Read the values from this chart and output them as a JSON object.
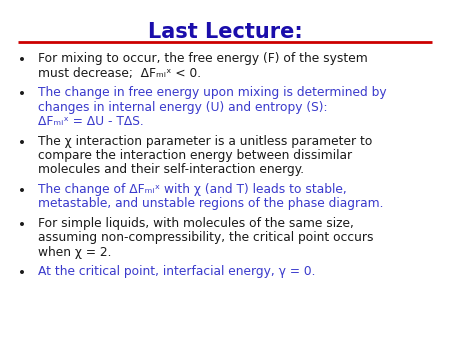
{
  "title": "Last Lecture:",
  "title_color": "#1a0dab",
  "title_underline_color": "#cc0000",
  "bg_color": "#ffffff",
  "black_color": "#1a1a1a",
  "blue_color": "#3a3acc",
  "title_fontsize": 15,
  "body_fontsize": 8.8,
  "bullets": [
    {
      "color": "black",
      "lines": [
        "For mixing to occur, the free energy (F) of the system",
        "must decrease;  ΔFₘᵢˣ < 0."
      ]
    },
    {
      "color": "blue",
      "lines": [
        "The change in free energy upon mixing is determined by",
        "changes in internal energy (U) and entropy (S):",
        "ΔFₘᵢˣ = ΔU - TΔS."
      ]
    },
    {
      "color": "black",
      "lines": [
        "The χ interaction parameter is a unitless parameter to",
        "compare the interaction energy between dissimilar",
        "molecules and their self-interaction energy."
      ]
    },
    {
      "color": "blue",
      "lines": [
        "The change of ΔFₘᵢˣ with χ (and T) leads to stable,",
        "metastable, and unstable regions of the phase diagram."
      ]
    },
    {
      "color": "black",
      "lines": [
        "For simple liquids, with molecules of the same size,",
        "assuming non-compressibility, the critical point occurs",
        "when χ = 2."
      ]
    },
    {
      "color": "blue",
      "lines": [
        "At the critical point, interfacial energy, γ = 0."
      ]
    }
  ]
}
